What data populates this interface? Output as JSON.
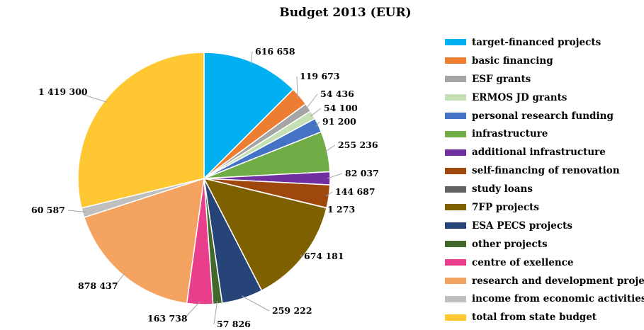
{
  "chart_data": {
    "type": "pie",
    "title": "Budget 2013 (EUR)",
    "categories": [
      "target-financed projects",
      "basic financing",
      "ESF grants",
      "ERMOS JD grants",
      "personal research funding",
      "infrastructure",
      "additional infrastructure",
      "self-financing of renovation",
      "study loans",
      "7FP projects",
      "ESA PECS projects",
      "other projects",
      "centre of exellence",
      "research and development projects",
      "income from economic activities",
      "total from state budget"
    ],
    "values": [
      616658,
      119673,
      54436,
      54100,
      91200,
      255236,
      82037,
      144687,
      1273,
      674181,
      259222,
      57826,
      163738,
      878437,
      60587,
      1419300
    ],
    "labels": [
      "616 658",
      "119 673",
      "54 436",
      "54 100",
      "91 200",
      "255 236",
      "82 037",
      "144 687",
      "1 273",
      "674 181",
      "259 222",
      "57 826",
      "163 738",
      "878 437",
      "60 587",
      "1 419 300"
    ],
    "colors": [
      "#00b0f0",
      "#ed7d31",
      "#a5a5a5",
      "#c5e0b4",
      "#4472c4",
      "#70ad47",
      "#7030a0",
      "#9e480e",
      "#636363",
      "#7f6000",
      "#264478",
      "#43682b",
      "#e83e8c",
      "#f4a460",
      "#bfbfbf",
      "#ffc832"
    ],
    "legend_position": "right"
  }
}
